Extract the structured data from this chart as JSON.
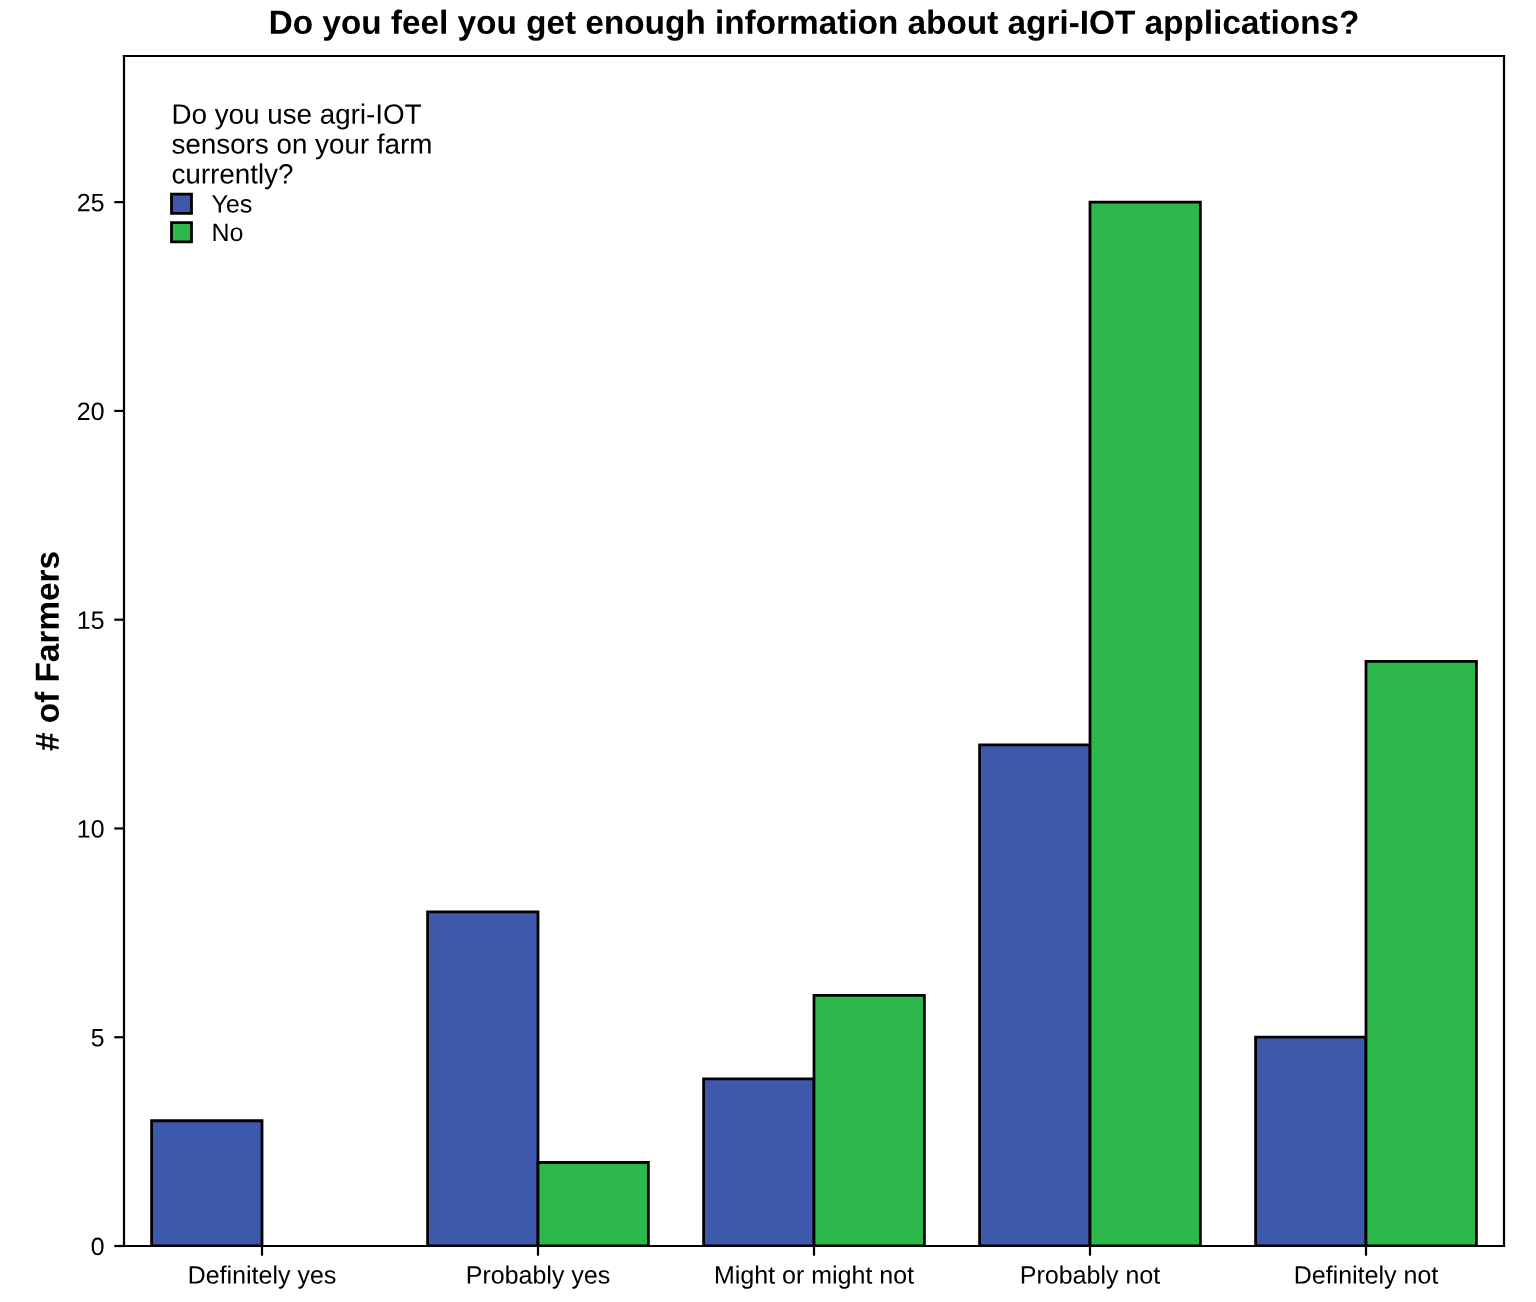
{
  "chart_data": {
    "type": "bar",
    "title": "Do you feel you get enough information about agri-IOT applications?",
    "ylabel": "# of Farmers",
    "legend_title": "Do you use agri-IOT\nsensors on your farm\ncurrently?",
    "categories": [
      "Definitely yes",
      "Probably yes",
      "Might or might not",
      "Probably not",
      "Definitely not"
    ],
    "series": [
      {
        "name": "Yes",
        "color": "#3e58ac",
        "values": [
          3,
          8,
          4,
          12,
          5
        ]
      },
      {
        "name": "No",
        "color": "#2db84b",
        "values": [
          null,
          2,
          6,
          25,
          14
        ]
      }
    ],
    "ylim": [
      0,
      28.5
    ],
    "yticks": [
      0,
      5,
      10,
      15,
      20,
      25
    ],
    "grid": false,
    "legend": "top left"
  }
}
